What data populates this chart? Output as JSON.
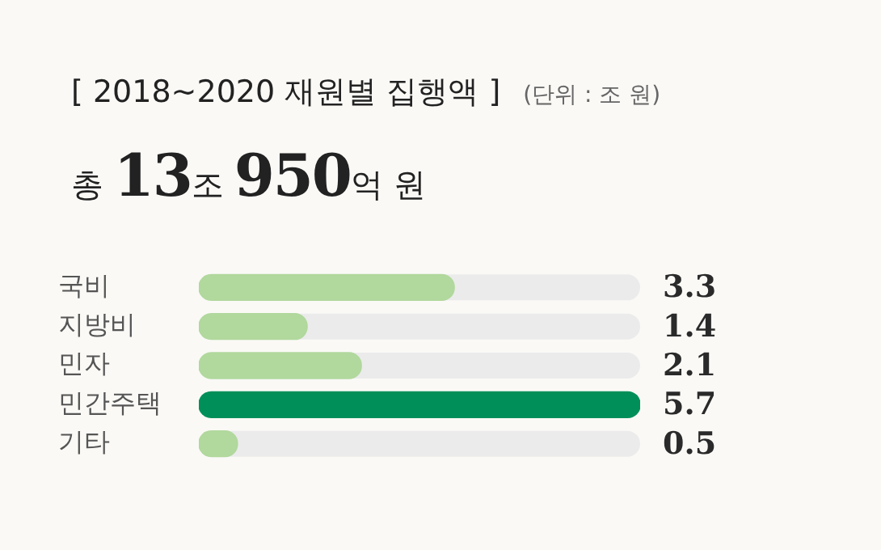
{
  "chart_data": {
    "type": "bar",
    "orientation": "horizontal",
    "title": "[ 2018~2020 재원별 집행액 ]",
    "subtitle": "(단위 : 조 원)",
    "annotations": [
      "총 13조 950억 원"
    ],
    "categories": [
      "국비",
      "지방비",
      "민자",
      "민간주택",
      "기타"
    ],
    "values": [
      3.3,
      1.4,
      2.1,
      5.7,
      0.5
    ],
    "colors": [
      "#b1d89d",
      "#b1d89d",
      "#b1d89d",
      "#008f59",
      "#b1d89d"
    ],
    "data_labels": true,
    "grid": false,
    "legend": false,
    "tick_labels": "y"
  }
}
